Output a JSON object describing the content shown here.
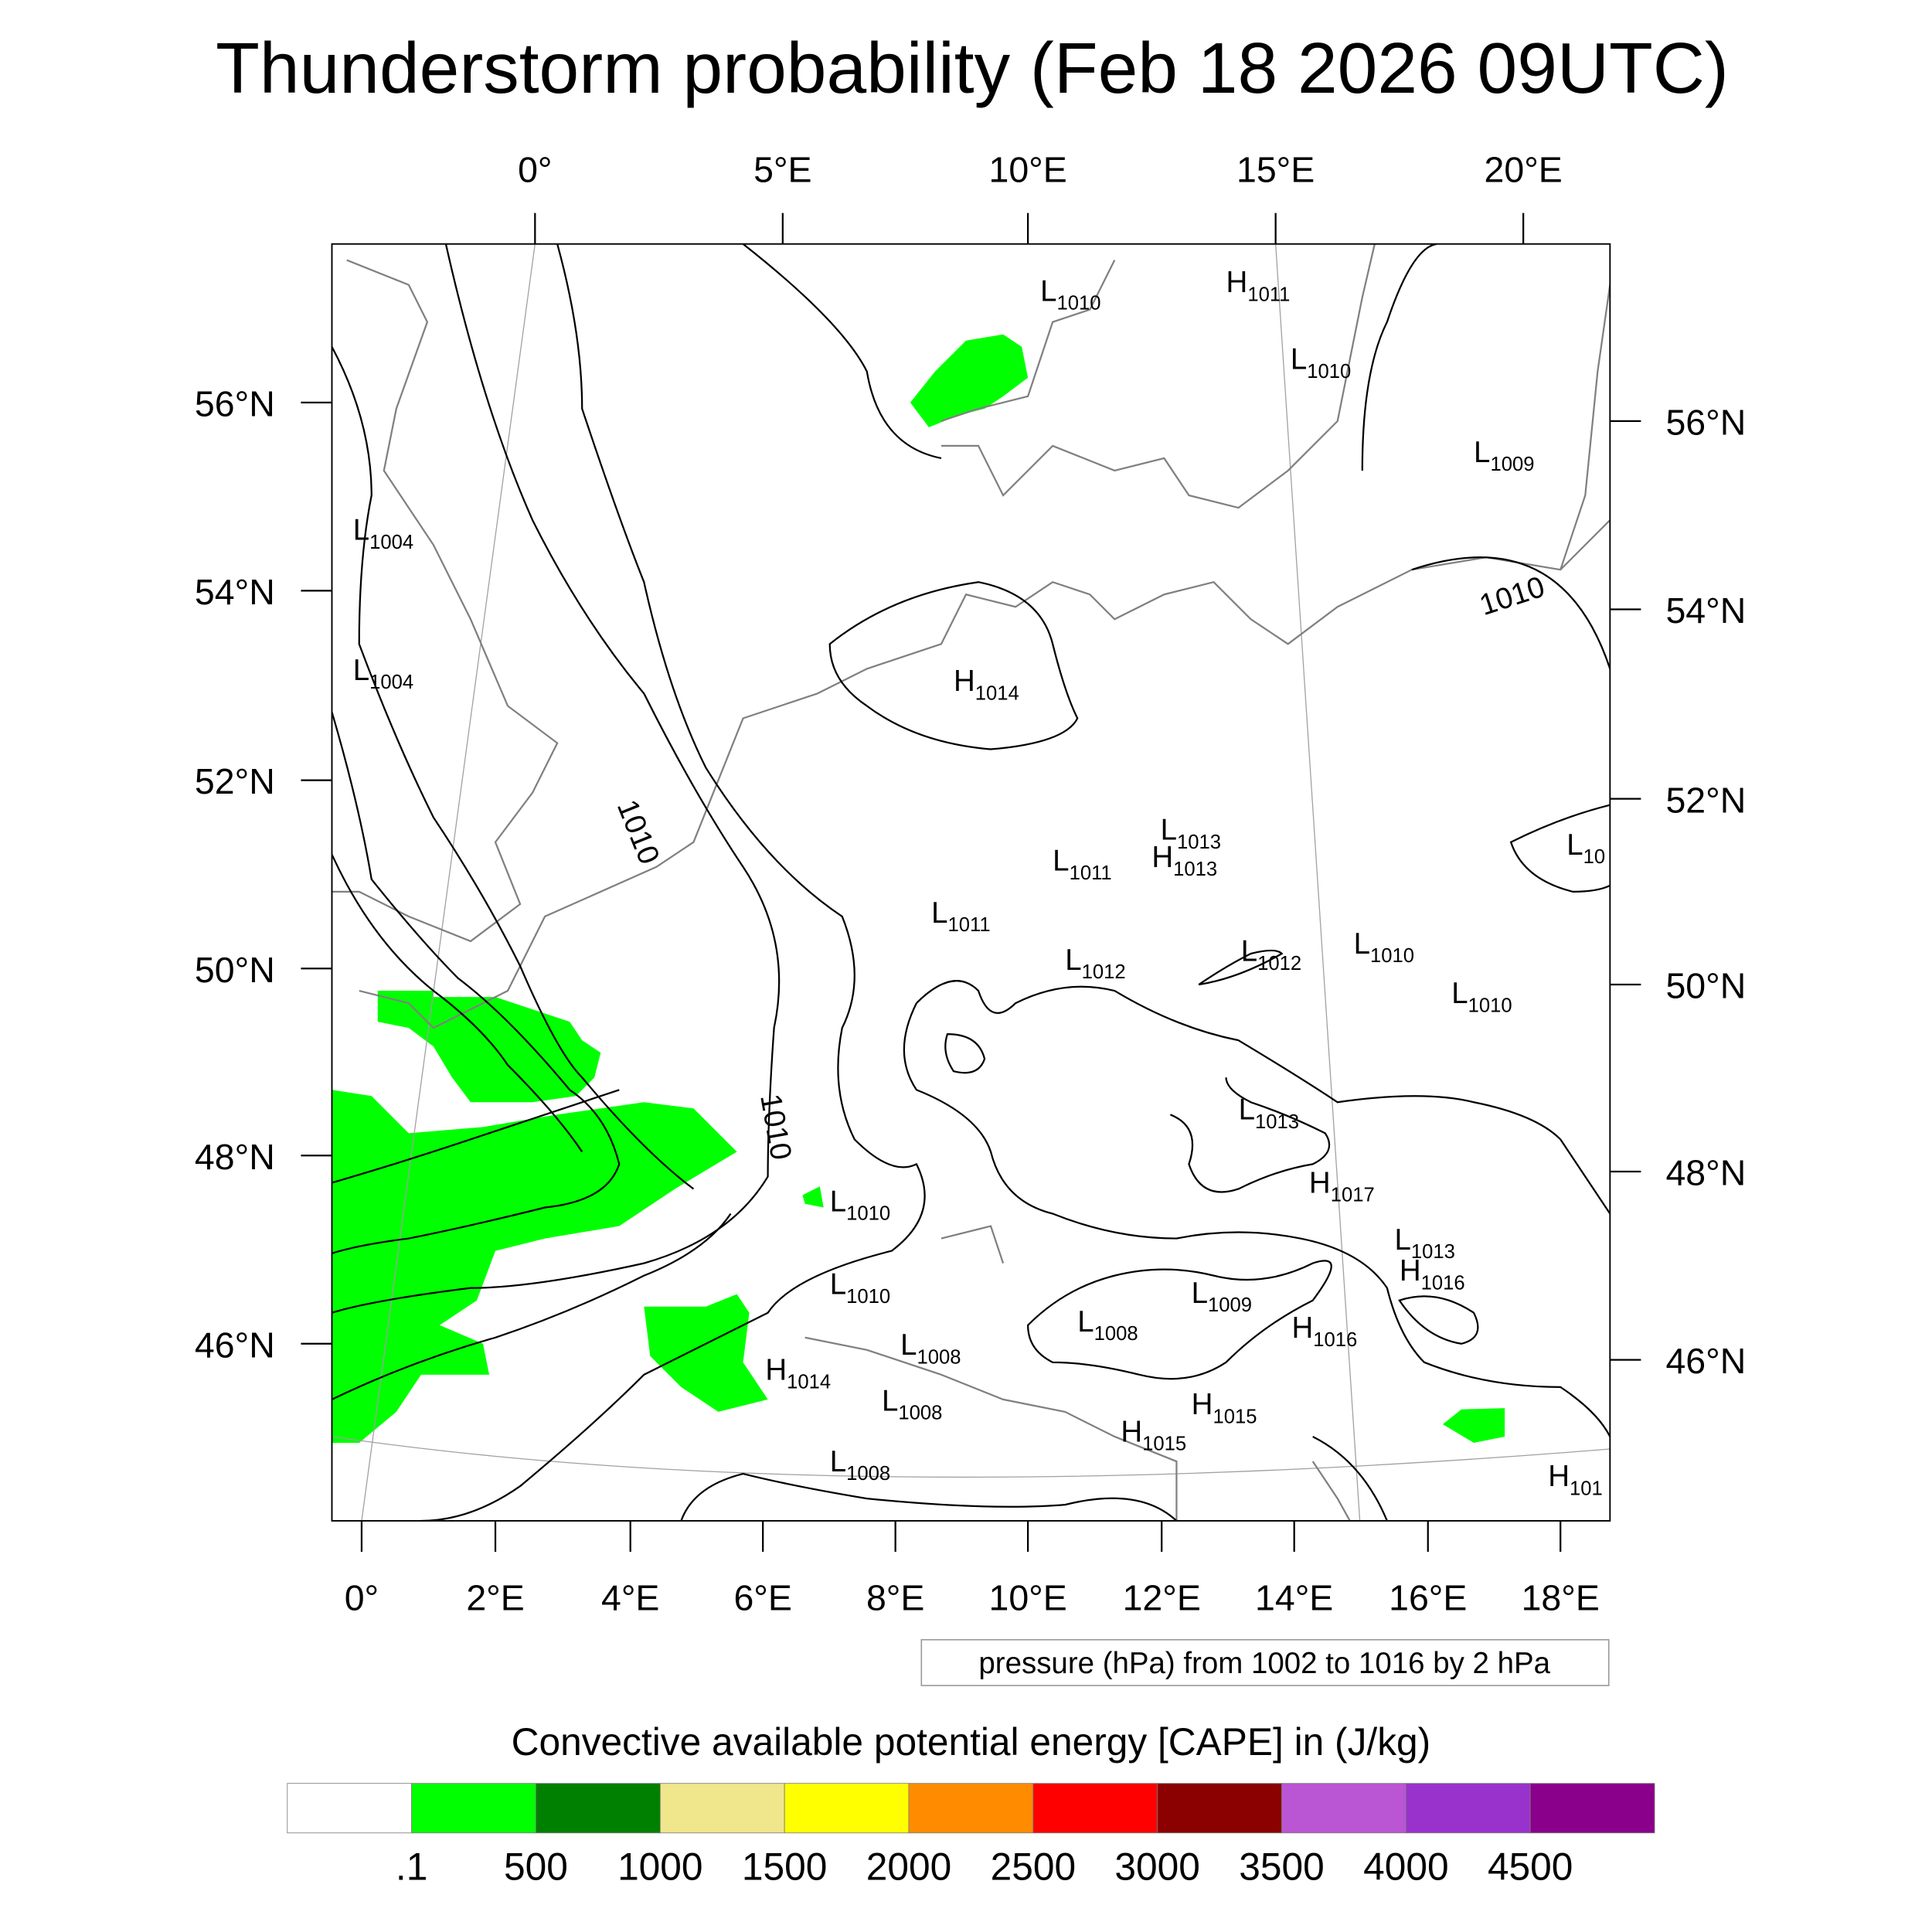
{
  "title": "Thunderstorm probability (Feb 18 2026 09UTC)",
  "chart_data": {
    "type": "heatmap",
    "title": "Thunderstorm probability (Feb 18 2026 09UTC)",
    "top_lon_labels": [
      "0°",
      "5°E",
      "10°E",
      "15°E",
      "20°E"
    ],
    "bottom_lon_labels": [
      "0°",
      "2°E",
      "4°E",
      "6°E",
      "8°E",
      "10°E",
      "12°E",
      "14°E",
      "16°E",
      "18°E"
    ],
    "left_lat_labels": [
      "56°N",
      "54°N",
      "52°N",
      "50°N",
      "48°N",
      "46°N"
    ],
    "right_lat_labels": [
      "56°N",
      "54°N",
      "52°N",
      "50°N",
      "48°N",
      "46°N"
    ],
    "contour_info": "pressure (hPa) from 1002 to 1016 by 2 hPa",
    "contour_line_labels": [
      "1010",
      "1010",
      "1010"
    ],
    "colorbar_title": "Convective available potential energy [CAPE] in (J/kg)",
    "colorbar_labels": [
      ".1",
      "500",
      "1000",
      "1500",
      "2000",
      "2500",
      "3000",
      "3500",
      "4000",
      "4500"
    ],
    "colorbar_colors": [
      "#ffffff",
      "#00ff00",
      "#008000",
      "#f0e68c",
      "#ffff00",
      "#ff8c00",
      "#ff0000",
      "#8b0000",
      "#ba55d3",
      "#9932cc",
      "#8b008b"
    ],
    "pressure_centers": [
      {
        "type": "L",
        "value": "1010"
      },
      {
        "type": "H",
        "value": "1011"
      },
      {
        "type": "L",
        "value": "1010"
      },
      {
        "type": "L",
        "value": "1009"
      },
      {
        "type": "L",
        "value": "1004"
      },
      {
        "type": "L",
        "value": "1004"
      },
      {
        "type": "H",
        "value": "1014"
      },
      {
        "type": "L",
        "value": "1013"
      },
      {
        "type": "L",
        "value": "1011"
      },
      {
        "type": "H",
        "value": "1013"
      },
      {
        "type": "L",
        "value": "10"
      },
      {
        "type": "L",
        "value": "1011"
      },
      {
        "type": "L",
        "value": "1012"
      },
      {
        "type": "L",
        "value": "1012"
      },
      {
        "type": "L",
        "value": "1010"
      },
      {
        "type": "L",
        "value": "1010"
      },
      {
        "type": "L",
        "value": "1013"
      },
      {
        "type": "H",
        "value": "1017"
      },
      {
        "type": "L",
        "value": "1010"
      },
      {
        "type": "L",
        "value": "1013"
      },
      {
        "type": "H",
        "value": "1016"
      },
      {
        "type": "L",
        "value": "1010"
      },
      {
        "type": "L",
        "value": "1009"
      },
      {
        "type": "L",
        "value": "1008"
      },
      {
        "type": "H",
        "value": "1016"
      },
      {
        "type": "L",
        "value": "1008"
      },
      {
        "type": "H",
        "value": "1014"
      },
      {
        "type": "L",
        "value": "1008"
      },
      {
        "type": "H",
        "value": "1015"
      },
      {
        "type": "H",
        "value": "1015"
      },
      {
        "type": "L",
        "value": "1008"
      },
      {
        "type": "H",
        "value": "101"
      }
    ]
  }
}
